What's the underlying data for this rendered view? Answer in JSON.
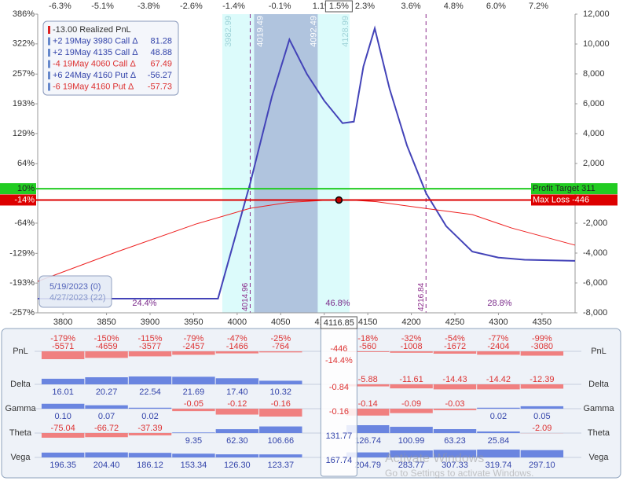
{
  "chart_data": [
    {
      "type": "line",
      "xlim": [
        3771,
        4388
      ],
      "xticks": [
        3800,
        3850,
        3900,
        3950,
        4000,
        4050,
        4100,
        4150,
        4200,
        4250,
        4300,
        4350
      ],
      "x2lim": [
        -6.93,
        8.23
      ],
      "x2ticks": [
        {
          "value": -6.3,
          "label": "-6.3%"
        },
        {
          "value": -5.1,
          "label": "-5.1%"
        },
        {
          "value": -3.8,
          "label": "-3.8%"
        },
        {
          "value": -2.6,
          "label": "-2.6%"
        },
        {
          "value": -1.4,
          "label": "-1.4%"
        },
        {
          "value": -0.1,
          "label": "-0.1%"
        },
        {
          "value": 1.1,
          "label": "1.1%"
        },
        {
          "value": 2.3,
          "label": "2.3%"
        },
        {
          "value": 3.6,
          "label": "3.6%"
        },
        {
          "value": 4.8,
          "label": "4.8%"
        },
        {
          "value": 6.0,
          "label": "6.0%"
        },
        {
          "value": 7.2,
          "label": "7.2%"
        }
      ],
      "ylim": [
        -257,
        386
      ],
      "yticks": [
        {
          "value": 386,
          "label": "386%"
        },
        {
          "value": 322,
          "label": "322%"
        },
        {
          "value": 257,
          "label": "257%"
        },
        {
          "value": 193,
          "label": "193%"
        },
        {
          "value": 129,
          "label": "129%"
        },
        {
          "value": 64,
          "label": "64%"
        },
        {
          "value": -64,
          "label": "-64%"
        },
        {
          "value": -129,
          "label": "-129%"
        },
        {
          "value": -193,
          "label": "-193%"
        },
        {
          "value": -257,
          "label": "-257%"
        }
      ],
      "y2lim": [
        -8000,
        12000
      ],
      "y2ticks": [
        {
          "value": 12000,
          "label": "12,000"
        },
        {
          "value": 10000,
          "label": "10,000"
        },
        {
          "value": 8000,
          "label": "8,000"
        },
        {
          "value": 6000,
          "label": "6,000"
        },
        {
          "value": 4000,
          "label": "4,000"
        },
        {
          "value": 2000,
          "label": "2,000"
        },
        {
          "value": -2000,
          "label": "-2,000"
        },
        {
          "value": -4000,
          "label": "-4,000"
        },
        {
          "value": -6000,
          "label": "-6,000"
        },
        {
          "value": -8000,
          "label": "-8,000"
        }
      ],
      "current": {
        "x": 4116.85,
        "pct": {
          "value": 1.5,
          "label": "1.5%"
        }
      },
      "bands": [
        {
          "range": [
            3982.99,
            4128.99
          ],
          "color": "#dcfbfb"
        },
        {
          "range": [
            4019.49,
            4092.49
          ],
          "color": "#b0c4de"
        }
      ],
      "breakevens": [
        4014.96,
        4216.84
      ],
      "series": [
        {
          "name": "5/19/2023 (0)",
          "color": "#4343b8",
          "axis": "y2",
          "x": [
            3771,
            3978,
            4015,
            4040,
            4060,
            4080,
            4100,
            4121,
            4134,
            4145,
            4158,
            4175,
            4195,
            4217,
            4240,
            4270,
            4300,
            4330,
            4388
          ],
          "values": [
            -7050,
            -7050,
            680,
            6500,
            10300,
            8000,
            6200,
            4700,
            4800,
            8500,
            11050,
            7000,
            3200,
            0,
            -2200,
            -3900,
            -4300,
            -4450,
            -4520
          ]
        },
        {
          "name": "4/27/2023 (22)",
          "color": "#ee2020",
          "axis": "y2",
          "x": [
            3771,
            3863,
            3953,
            4015,
            4060,
            4100,
            4130,
            4160,
            4215,
            4270,
            4315,
            4388
          ],
          "values": [
            -5895,
            -3895,
            -2050,
            -1000,
            -600,
            -470,
            -446,
            -560,
            -1000,
            -1420,
            -2320,
            -3470
          ]
        }
      ],
      "targets": [
        {
          "value": 311,
          "label": "Profit Target 311",
          "pct": {
            "value": 10,
            "label": "10%"
          },
          "color": "#22cc22"
        },
        {
          "value": -446,
          "label": "Max Loss -446",
          "pct": {
            "value": -14,
            "label": "-14%"
          },
          "color": "#dd0000"
        }
      ],
      "probabilities": [
        {
          "value": 24.4,
          "label": "24.4%"
        },
        {
          "value": 46.8,
          "label": "46.8%"
        },
        {
          "value": 28.8,
          "label": "28.8%"
        }
      ],
      "legend": [
        {
          "text": "-13.00 Realized PnL",
          "color": "#dd2222",
          "text_color": "#333333"
        },
        {
          "text": "+2 19May 3980 Call Δ",
          "value": 81.28,
          "color": "#6688cc",
          "text_color": "#3344aa"
        },
        {
          "text": "+2 19May 4135 Call Δ",
          "value": 48.88,
          "color": "#6688cc",
          "text_color": "#3344aa"
        },
        {
          "text": "-4 19May 4060 Call Δ",
          "value": 67.49,
          "color": "#6688cc",
          "text_color": "#dd3333"
        },
        {
          "text": "+6 24May 4160 Put Δ",
          "value": -56.27,
          "color": "#6688cc",
          "text_color": "#3344aa"
        },
        {
          "text": "-6 19May 4160 Put Δ",
          "value": -57.73,
          "color": "#6688cc",
          "text_color": "#dd3333"
        }
      ]
    },
    {
      "type": "bar",
      "x": [
        3800,
        3850,
        3900,
        3950,
        4000,
        4050,
        4100,
        4150,
        4200,
        4250,
        4300,
        4350
      ],
      "xlim": [
        3771,
        4388
      ],
      "current": {
        "x": 4116.85
      },
      "series": [
        {
          "name": "PnL",
          "values": [
            -5571,
            -4659,
            -3577,
            -2457,
            -1466,
            -764,
            null,
            -560,
            -1008,
            -1672,
            -2404,
            -3080
          ],
          "pct_values": [
            -179,
            -150,
            -115,
            -79,
            -47,
            -25,
            null,
            -18,
            -32,
            -54,
            -77,
            -99
          ],
          "pct_labels": [
            "-179%",
            "-150%",
            "-115%",
            "-79%",
            "-47%",
            "-25%",
            null,
            "-18%",
            "-32%",
            "-54%",
            "-77%",
            "-99%"
          ],
          "current_value": -446,
          "current_pct": {
            "value": -14.4,
            "label": "-14.4%"
          }
        },
        {
          "name": "Delta",
          "values": [
            16.01,
            20.27,
            22.54,
            21.69,
            17.4,
            10.32,
            null,
            -5.88,
            -11.61,
            -14.43,
            -14.42,
            -12.39
          ],
          "value_labels": [
            "16.01",
            "20.27",
            "22.54",
            "21.69",
            "17.40",
            "10.32",
            null,
            "-5.88",
            "-11.61",
            "-14.43",
            "-14.42",
            "-12.39"
          ],
          "current_value": -0.84
        },
        {
          "name": "Gamma",
          "values": [
            0.1,
            0.07,
            0.02,
            -0.05,
            -0.12,
            -0.16,
            null,
            -0.14,
            -0.09,
            -0.03,
            0.02,
            0.05
          ],
          "value_labels": [
            "0.10",
            "0.07",
            "0.02",
            "-0.05",
            "-0.12",
            "-0.16",
            null,
            "-0.14",
            "-0.09",
            "-0.03",
            "0.02",
            "0.05"
          ],
          "current_value": -0.16
        },
        {
          "name": "Theta",
          "values": [
            -75.04,
            -66.72,
            -37.39,
            9.35,
            62.3,
            106.66,
            null,
            126.74,
            100.99,
            63.23,
            25.84,
            -2.09
          ],
          "value_labels": [
            "-75.04",
            "-66.72",
            "-37.39",
            "9.35",
            "62.30",
            "106.66",
            null,
            "126.74",
            "100.99",
            "63.23",
            "25.84",
            "-2.09"
          ],
          "current_value": 131.77
        },
        {
          "name": "Vega",
          "values": [
            196.35,
            204.4,
            186.12,
            153.34,
            126.3,
            123.37,
            null,
            204.79,
            283.77,
            307.33,
            319.74,
            297.1
          ],
          "value_labels": [
            "196.35",
            "204.40",
            "186.12",
            "153.34",
            "126.30",
            "123.37",
            null,
            "204.79",
            "283.77",
            "307.33",
            "319.74",
            "297.10"
          ],
          "current_value": 167.74
        }
      ]
    }
  ],
  "overlay": {
    "line1": "Activate Windows",
    "line2": "Go to Settings to activate Windows."
  }
}
